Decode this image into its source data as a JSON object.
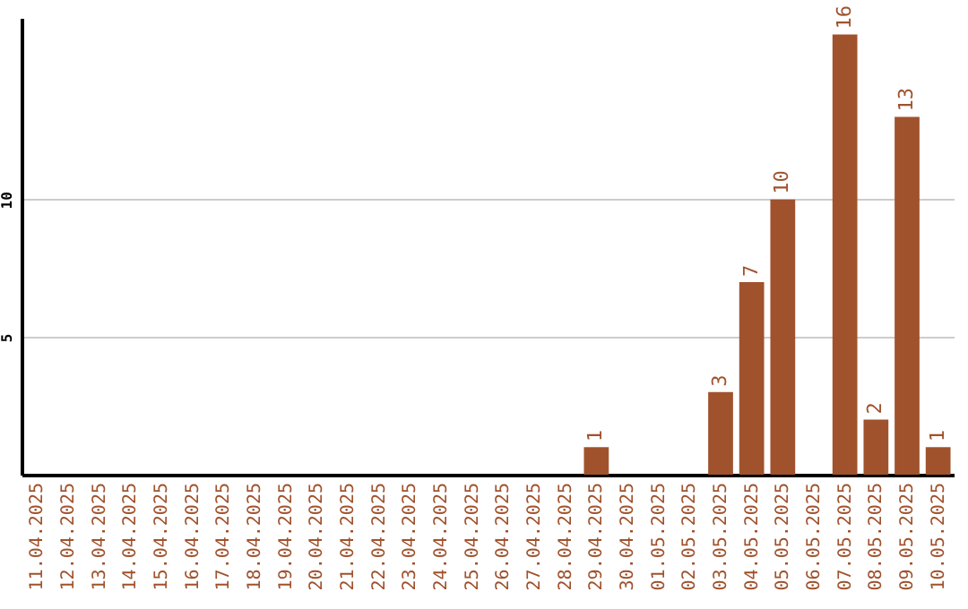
{
  "chart_data": {
    "type": "bar",
    "categories": [
      "11.04.2025",
      "12.04.2025",
      "13.04.2025",
      "14.04.2025",
      "15.04.2025",
      "16.04.2025",
      "17.04.2025",
      "18.04.2025",
      "19.04.2025",
      "20.04.2025",
      "21.04.2025",
      "22.04.2025",
      "23.04.2025",
      "24.04.2025",
      "25.04.2025",
      "26.04.2025",
      "27.04.2025",
      "28.04.2025",
      "29.04.2025",
      "30.04.2025",
      "01.05.2025",
      "02.05.2025",
      "03.05.2025",
      "04.05.2025",
      "05.05.2025",
      "06.05.2025",
      "07.05.2025",
      "08.05.2025",
      "09.05.2025",
      "10.05.2025"
    ],
    "values": [
      0,
      0,
      0,
      0,
      0,
      0,
      0,
      0,
      0,
      0,
      0,
      0,
      0,
      0,
      0,
      0,
      0,
      0,
      1,
      0,
      0,
      0,
      3,
      7,
      10,
      0,
      16,
      2,
      13,
      1
    ],
    "value_labels": [
      null,
      null,
      null,
      null,
      null,
      null,
      null,
      null,
      null,
      null,
      null,
      null,
      null,
      null,
      null,
      null,
      null,
      null,
      "1",
      null,
      null,
      null,
      "3",
      "7",
      "10",
      null,
      "16",
      "2",
      "13",
      "1"
    ],
    "color": "#a0522d",
    "ylim": [
      0,
      16.6
    ],
    "yticks": [
      5,
      10
    ],
    "grid": "y"
  }
}
